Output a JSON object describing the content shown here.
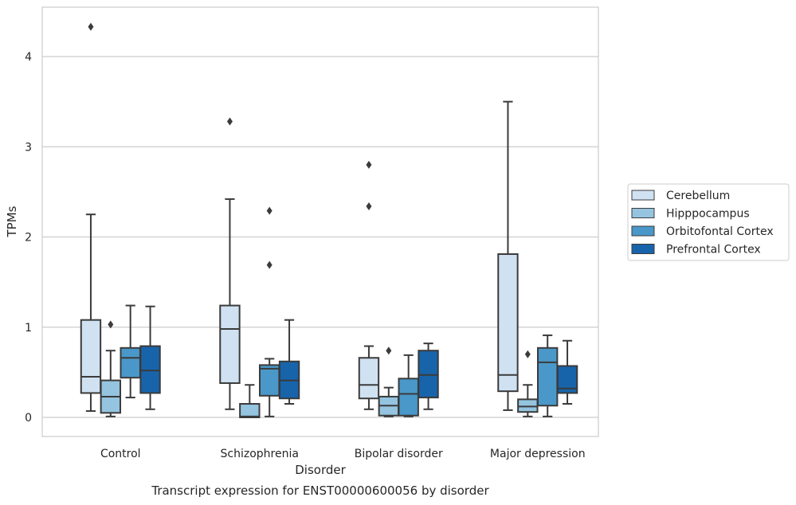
{
  "chart_data": {
    "type": "boxplot",
    "title": "Transcript expression for ENST00000600056 by disorder",
    "xlabel": "Disorder",
    "ylabel": "TPMs",
    "ylim": [
      -0.2,
      4.55
    ],
    "yticks": [
      0,
      1,
      2,
      3,
      4
    ],
    "grid": true,
    "legend_position": "right",
    "categories": [
      "Control",
      "Schizophrenia",
      "Bipolar disorder",
      "Major depression"
    ],
    "series": [
      {
        "name": "Cerebellum",
        "color": "#d0e1f2",
        "boxes": [
          {
            "whisker_low": 0.07,
            "q1": 0.27,
            "median": 0.45,
            "q3": 1.08,
            "whisker_high": 2.25,
            "outliers": [
              4.33
            ]
          },
          {
            "whisker_low": 0.09,
            "q1": 0.38,
            "median": 0.98,
            "q3": 1.24,
            "whisker_high": 2.42,
            "outliers": [
              3.28
            ]
          },
          {
            "whisker_low": 0.09,
            "q1": 0.21,
            "median": 0.36,
            "q3": 0.66,
            "whisker_high": 0.79,
            "outliers": [
              2.34,
              2.8
            ]
          },
          {
            "whisker_low": 0.08,
            "q1": 0.29,
            "median": 0.47,
            "q3": 1.81,
            "whisker_high": 3.5,
            "outliers": []
          }
        ]
      },
      {
        "name": "Hipppocampus",
        "color": "#94c4df",
        "boxes": [
          {
            "whisker_low": 0.01,
            "q1": 0.05,
            "median": 0.23,
            "q3": 0.41,
            "whisker_high": 0.74,
            "outliers": [
              1.03
            ]
          },
          {
            "whisker_low": 0.0,
            "q1": 0.0,
            "median": 0.01,
            "q3": 0.15,
            "whisker_high": 0.36,
            "outliers": []
          },
          {
            "whisker_low": 0.01,
            "q1": 0.02,
            "median": 0.13,
            "q3": 0.23,
            "whisker_high": 0.33,
            "outliers": [
              0.74
            ]
          },
          {
            "whisker_low": 0.01,
            "q1": 0.06,
            "median": 0.12,
            "q3": 0.2,
            "whisker_high": 0.36,
            "outliers": [
              0.7
            ]
          }
        ]
      },
      {
        "name": "Orbitofontal Cortex",
        "color": "#4a98c9",
        "boxes": [
          {
            "whisker_low": 0.22,
            "q1": 0.44,
            "median": 0.66,
            "q3": 0.77,
            "whisker_high": 1.24,
            "outliers": []
          },
          {
            "whisker_low": 0.01,
            "q1": 0.24,
            "median": 0.54,
            "q3": 0.58,
            "whisker_high": 0.65,
            "outliers": [
              1.69,
              2.29
            ]
          },
          {
            "whisker_low": 0.01,
            "q1": 0.02,
            "median": 0.26,
            "q3": 0.43,
            "whisker_high": 0.69,
            "outliers": []
          },
          {
            "whisker_low": 0.01,
            "q1": 0.13,
            "median": 0.61,
            "q3": 0.77,
            "whisker_high": 0.91,
            "outliers": []
          }
        ]
      },
      {
        "name": "Prefrontal Cortex",
        "color": "#1764ab",
        "boxes": [
          {
            "whisker_low": 0.09,
            "q1": 0.27,
            "median": 0.52,
            "q3": 0.79,
            "whisker_high": 1.23,
            "outliers": []
          },
          {
            "whisker_low": 0.15,
            "q1": 0.21,
            "median": 0.41,
            "q3": 0.62,
            "whisker_high": 1.08,
            "outliers": []
          },
          {
            "whisker_low": 0.09,
            "q1": 0.22,
            "median": 0.47,
            "q3": 0.74,
            "whisker_high": 0.82,
            "outliers": []
          },
          {
            "whisker_low": 0.15,
            "q1": 0.27,
            "median": 0.32,
            "q3": 0.57,
            "whisker_high": 0.85,
            "outliers": []
          }
        ]
      }
    ]
  },
  "colors": {
    "grid": "#cccccc",
    "frame": "#cccccc",
    "line": "#3b3b3b",
    "text": "#262626"
  }
}
